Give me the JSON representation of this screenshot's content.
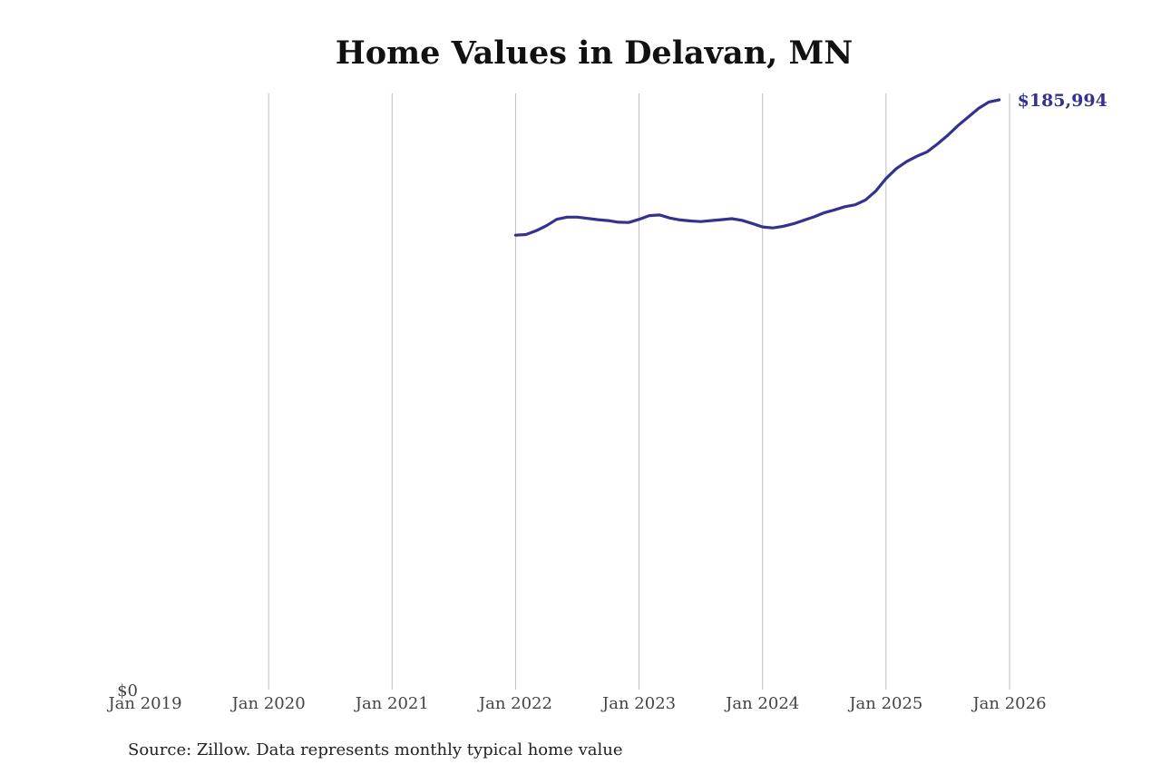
{
  "chart_data": {
    "type": "line",
    "title": "Home Values in Delavan, MN",
    "xlabel": "",
    "ylabel": "",
    "x_ticks": [
      "Jan 2019",
      "Jan 2020",
      "Jan 2021",
      "Jan 2022",
      "Jan 2023",
      "Jan 2024",
      "Jan 2025",
      "Jan 2026"
    ],
    "y_ticks": [
      {
        "value": 0,
        "label": "$0"
      }
    ],
    "xlim": [
      "2019-01",
      "2026-01"
    ],
    "ylim": [
      0,
      186000
    ],
    "grid": "vertical",
    "series": [
      {
        "color": "#35328f",
        "end_label": "$185,994",
        "points": [
          [
            "2022-01",
            143300
          ],
          [
            "2022-02",
            143500
          ],
          [
            "2022-03",
            144700
          ],
          [
            "2022-04",
            146300
          ],
          [
            "2022-05",
            148300
          ],
          [
            "2022-06",
            149000
          ],
          [
            "2022-07",
            149000
          ],
          [
            "2022-08",
            148600
          ],
          [
            "2022-09",
            148200
          ],
          [
            "2022-10",
            147900
          ],
          [
            "2022-11",
            147400
          ],
          [
            "2022-12",
            147300
          ],
          [
            "2023-01",
            148300
          ],
          [
            "2023-02",
            149500
          ],
          [
            "2023-03",
            149700
          ],
          [
            "2023-04",
            148700
          ],
          [
            "2023-05",
            148100
          ],
          [
            "2023-06",
            147800
          ],
          [
            "2023-07",
            147600
          ],
          [
            "2023-08",
            147900
          ],
          [
            "2023-09",
            148200
          ],
          [
            "2023-10",
            148500
          ],
          [
            "2023-11",
            148000
          ],
          [
            "2023-12",
            147000
          ],
          [
            "2024-01",
            145900
          ],
          [
            "2024-02",
            145600
          ],
          [
            "2024-03",
            146100
          ],
          [
            "2024-04",
            146900
          ],
          [
            "2024-05",
            148000
          ],
          [
            "2024-06",
            149100
          ],
          [
            "2024-07",
            150400
          ],
          [
            "2024-08",
            151300
          ],
          [
            "2024-09",
            152300
          ],
          [
            "2024-10",
            152900
          ],
          [
            "2024-11",
            154400
          ],
          [
            "2024-12",
            157200
          ],
          [
            "2025-01",
            161200
          ],
          [
            "2025-02",
            164300
          ],
          [
            "2025-03",
            166500
          ],
          [
            "2025-04",
            168200
          ],
          [
            "2025-05",
            169600
          ],
          [
            "2025-06",
            172100
          ],
          [
            "2025-07",
            174800
          ],
          [
            "2025-08",
            177900
          ],
          [
            "2025-09",
            180600
          ],
          [
            "2025-10",
            183300
          ],
          [
            "2025-11",
            185300
          ],
          [
            "2025-12",
            185994
          ]
        ]
      }
    ]
  },
  "source_note": "Source: Zillow. Data represents monthly typical home value"
}
